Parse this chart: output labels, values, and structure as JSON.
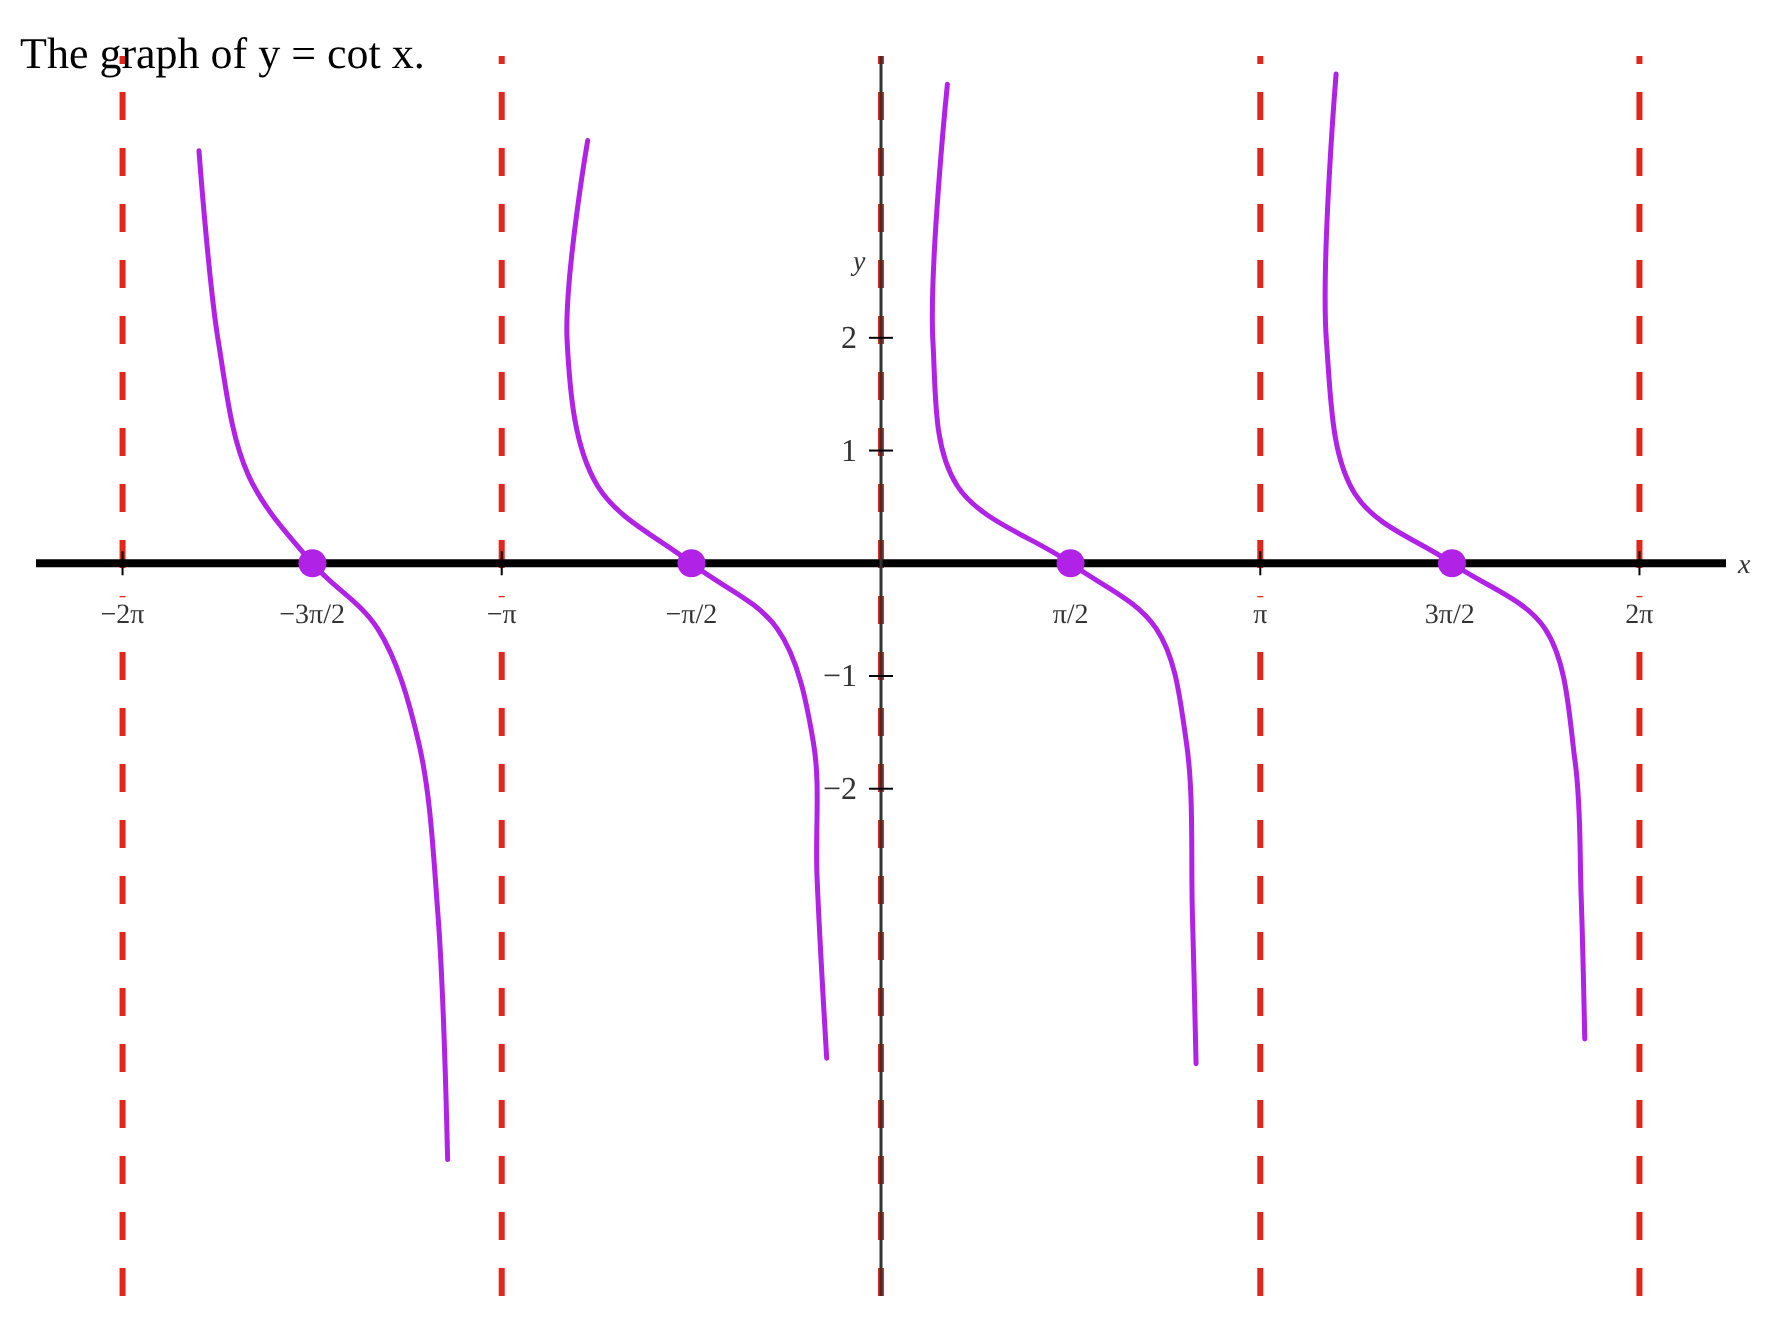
{
  "chart_data": {
    "type": "line",
    "title": "The graph of y = cot x.",
    "xlabel": "x",
    "ylabel": "y",
    "xlim": [
      -7,
      7
    ],
    "ylim": [
      -6.5,
      4.5
    ],
    "xticks": [
      {
        "value": -6.283,
        "label": "−2π"
      },
      {
        "value": -4.712,
        "label": "−3π/2"
      },
      {
        "value": -3.142,
        "label": "−π"
      },
      {
        "value": -1.571,
        "label": "−π/2"
      },
      {
        "value": 1.571,
        "label": "π/2"
      },
      {
        "value": 3.142,
        "label": "π"
      },
      {
        "value": 4.712,
        "label": "3π/2"
      },
      {
        "value": 6.283,
        "label": "2π"
      }
    ],
    "yticks": [
      -2,
      -1,
      1,
      2
    ],
    "grid": false,
    "series": [
      {
        "color": "#b022e6",
        "marker": "none",
        "x": [
          -5.65,
          -5.49,
          -5.24,
          -4.71,
          -4.17,
          -3.83,
          -3.67,
          -3.59
        ],
        "values": [
          3.66,
          1.97,
          0.78,
          0,
          -0.58,
          -1.59,
          -3.12,
          -5.29
        ]
      },
      {
        "color": "#b022e6",
        "marker": "none",
        "x": [
          -2.43,
          -2.6,
          -2.35,
          -1.57,
          -0.86,
          -0.56,
          -0.53,
          -0.45
        ],
        "values": [
          3.75,
          1.97,
          0.69,
          0,
          -0.58,
          -1.59,
          -2.78,
          -4.39
        ]
      },
      {
        "color": "#b022e6",
        "marker": "none",
        "x": [
          0.55,
          0.43,
          0.63,
          1.57,
          2.28,
          2.53,
          2.58,
          2.61
        ],
        "values": [
          4.25,
          1.97,
          0.69,
          0,
          -0.58,
          -1.59,
          -3.12,
          -4.44
        ]
      },
      {
        "color": "#b022e6",
        "marker": "none",
        "x": [
          3.77,
          3.69,
          3.93,
          4.73,
          5.5,
          5.75,
          5.8,
          5.83
        ],
        "values": [
          4.34,
          1.97,
          0.61,
          0,
          -0.58,
          -1.76,
          -2.95,
          -4.22
        ]
      },
      {
        "type": "scatter",
        "color": "#b022e6",
        "marker": "circle",
        "x": [
          -4.71,
          -1.57,
          1.57,
          4.73
        ],
        "values": [
          0,
          0,
          0,
          0
        ]
      }
    ],
    "ref_lines": [
      {
        "axis": "x",
        "value": -6.283,
        "color": "#e3261c",
        "line_style": "dashed"
      },
      {
        "axis": "x",
        "value": -3.142,
        "color": "#e3261c",
        "line_style": "dashed"
      },
      {
        "axis": "x",
        "value": 0,
        "color": "#e3261c",
        "line_style": "dashed"
      },
      {
        "axis": "x",
        "value": 3.142,
        "color": "#e3261c",
        "line_style": "dashed"
      },
      {
        "axis": "x",
        "value": 6.283,
        "color": "#e3261c",
        "line_style": "dashed"
      }
    ]
  }
}
